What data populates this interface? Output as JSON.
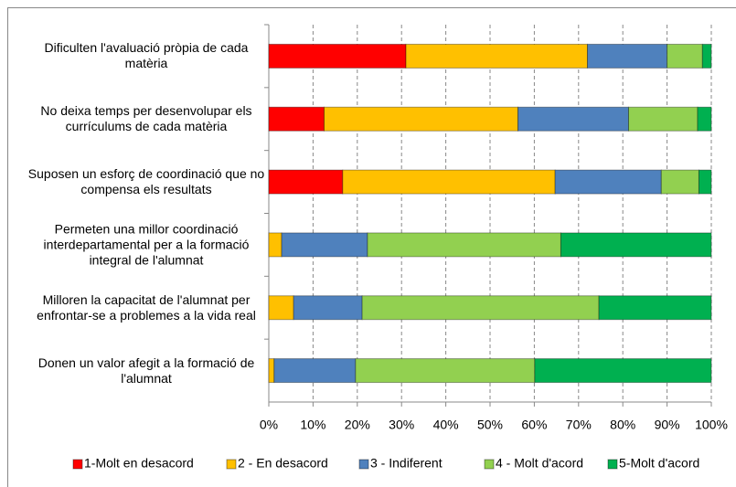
{
  "chart_data": {
    "type": "stacked_bar_horizontal",
    "categories": [
      "Dificulten l'avaluació pròpia de cada matèria",
      "No deixa temps per desenvolupar els currículums de cada matèria",
      "Suposen un esforç de coordinació que no compensa els resultats",
      "Permeten una millor coordinació interdepartamental per a la formació integral de l'alumnat",
      "Milloren la capacitat de l'alumnat per enfrontar-se a problemes a la vida real",
      "Donen un valor afegit a la formació de l'alumnat"
    ],
    "series": [
      {
        "name": "1-Molt en desacord",
        "color": "#ff0000",
        "values": [
          31,
          12.5,
          16.7,
          0,
          0,
          0
        ]
      },
      {
        "name": "2 - En desacord",
        "color": "#ffc000",
        "values": [
          41,
          43.8,
          48,
          2.9,
          5.6,
          1.2
        ]
      },
      {
        "name": "3 - Indiferent",
        "color": "#4f81bd",
        "values": [
          18,
          25,
          24,
          19.4,
          15.5,
          18.4
        ]
      },
      {
        "name": "4 - Molt d'acord",
        "color": "#92d050",
        "values": [
          8,
          15.6,
          8.5,
          43.7,
          53.5,
          40.5
        ]
      },
      {
        "name": "5-Molt d'acord",
        "color": "#00b050",
        "values": [
          2,
          3.1,
          2.8,
          34,
          25.4,
          39.9
        ]
      }
    ],
    "xlim": [
      0,
      100
    ],
    "xticks": [
      {
        "value": 0,
        "label": "0%"
      },
      {
        "value": 10,
        "label": "10%"
      },
      {
        "value": 20,
        "label": "20%"
      },
      {
        "value": 30,
        "label": "30%"
      },
      {
        "value": 40,
        "label": "40%"
      },
      {
        "value": 50,
        "label": "50%"
      },
      {
        "value": 60,
        "label": "60%"
      },
      {
        "value": 70,
        "label": "70%"
      },
      {
        "value": 80,
        "label": "80%"
      },
      {
        "value": 90,
        "label": "90%"
      },
      {
        "value": 100,
        "label": "100%"
      }
    ],
    "grid": true,
    "legend": "bottom"
  }
}
